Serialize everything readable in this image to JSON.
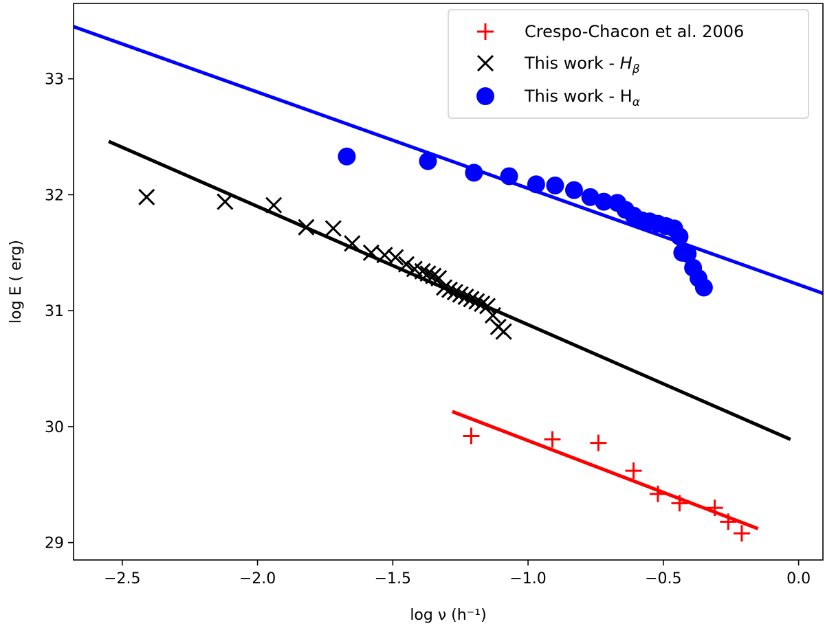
{
  "chart_data": {
    "type": "scatter",
    "title": "",
    "xlabel": "log ν (h⁻¹)",
    "ylabel": "log E ( erg)",
    "xlim": [
      -2.68,
      0.09
    ],
    "ylim": [
      28.85,
      33.65
    ],
    "x_ticks": [
      -2.5,
      -2.0,
      -1.5,
      -1.0,
      -0.5,
      0.0
    ],
    "x_tick_labels": [
      "−2.5",
      "−2.0",
      "−1.5",
      "−1.0",
      "−0.5",
      "0.0"
    ],
    "y_ticks": [
      29,
      30,
      31,
      32,
      33
    ],
    "y_tick_labels": [
      "29",
      "30",
      "31",
      "32",
      "33"
    ],
    "legend_position": "top-right",
    "series": [
      {
        "name": "Crespo-Chacon et al. 2006",
        "legend_label": "Crespo-Chacon et al. 2006",
        "marker": "plus",
        "color": "#ff0000",
        "x": [
          -1.21,
          -0.91,
          -0.74,
          -0.61,
          -0.52,
          -0.44,
          -0.31,
          -0.26,
          -0.21
        ],
        "y": [
          29.92,
          29.89,
          29.86,
          29.62,
          29.42,
          29.34,
          29.3,
          29.18,
          29.08
        ],
        "fit": {
          "x": [
            -1.28,
            -0.15
          ],
          "y": [
            30.13,
            29.12
          ]
        }
      },
      {
        "name": "This work - H_beta",
        "legend_label": "This work - ",
        "legend_symbol": "H",
        "legend_sub": "β",
        "marker": "x",
        "color": "#000000",
        "x": [
          -2.41,
          -2.12,
          -1.94,
          -1.82,
          -1.72,
          -1.65,
          -1.58,
          -1.53,
          -1.49,
          -1.45,
          -1.42,
          -1.39,
          -1.37,
          -1.35,
          -1.33,
          -1.31,
          -1.29,
          -1.27,
          -1.25,
          -1.23,
          -1.21,
          -1.19,
          -1.17,
          -1.15,
          -1.13,
          -1.11,
          -1.09
        ],
        "y": [
          31.98,
          31.94,
          31.91,
          31.72,
          31.71,
          31.58,
          31.5,
          31.48,
          31.46,
          31.4,
          31.36,
          31.34,
          31.32,
          31.3,
          31.28,
          31.2,
          31.18,
          31.16,
          31.14,
          31.12,
          31.1,
          31.08,
          31.06,
          31.04,
          30.96,
          30.86,
          30.82
        ],
        "fit": {
          "x": [
            -2.55,
            -0.03
          ],
          "y": [
            32.46,
            29.89
          ]
        }
      },
      {
        "name": "This work - H_alpha",
        "legend_label": "This work - H",
        "legend_sub": "α",
        "marker": "circle",
        "color": "#0000ff",
        "x": [
          -1.67,
          -1.37,
          -1.2,
          -1.07,
          -0.97,
          -0.9,
          -0.83,
          -0.77,
          -0.72,
          -0.67,
          -0.64,
          -0.61,
          -0.58,
          -0.55,
          -0.52,
          -0.49,
          -0.46,
          -0.44,
          -0.43,
          -0.41,
          -0.39,
          -0.37,
          -0.35
        ],
        "y": [
          32.33,
          32.29,
          32.19,
          32.16,
          32.09,
          32.08,
          32.04,
          31.98,
          31.94,
          31.93,
          31.87,
          31.82,
          31.78,
          31.77,
          31.75,
          31.73,
          31.71,
          31.64,
          31.5,
          31.49,
          31.37,
          31.28,
          31.2
        ],
        "fit": {
          "x": [
            -2.68,
            0.09
          ],
          "y": [
            33.45,
            31.15
          ]
        }
      }
    ]
  }
}
